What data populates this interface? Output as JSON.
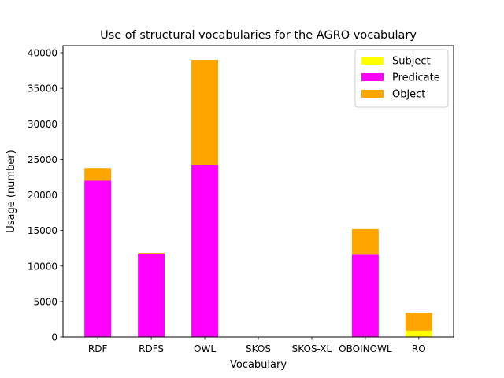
{
  "chart_data": {
    "type": "bar",
    "stacked": true,
    "title": "Use of structural vocabularies for the AGRO vocabulary",
    "xlabel": "Vocabulary",
    "ylabel": "Usage (number)",
    "categories": [
      "RDF",
      "RDFS",
      "OWL",
      "SKOS",
      "SKOS-XL",
      "OBOINOWL",
      "RO"
    ],
    "series": [
      {
        "name": "Subject",
        "color": "#ffff00",
        "values": [
          0,
          0,
          0,
          0,
          0,
          0,
          900
        ]
      },
      {
        "name": "Predicate",
        "color": "#ff00ff",
        "values": [
          22000,
          11700,
          24200,
          0,
          0,
          11600,
          0
        ]
      },
      {
        "name": "Object",
        "color": "#ffa500",
        "values": [
          1800,
          150,
          14800,
          0,
          0,
          3600,
          2500
        ]
      }
    ],
    "ylim": [
      0,
      41000
    ],
    "yticks": [
      0,
      5000,
      10000,
      15000,
      20000,
      25000,
      30000,
      35000,
      40000
    ],
    "grid": false,
    "legend_position": "top-right"
  }
}
